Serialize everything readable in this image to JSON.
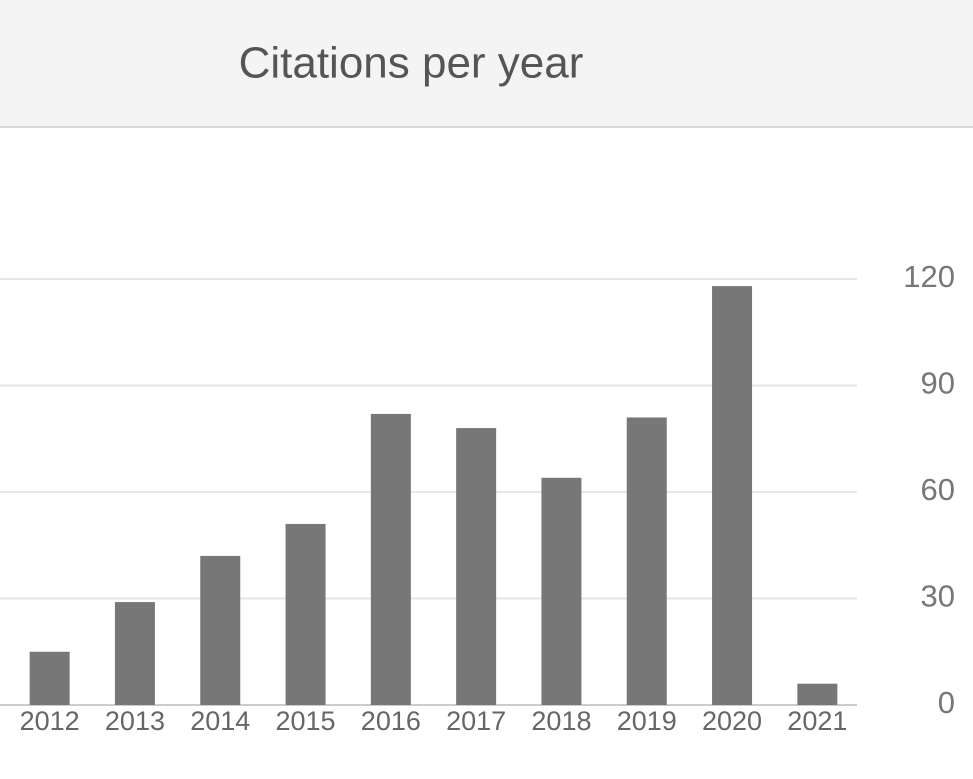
{
  "chart_data": {
    "type": "bar",
    "title": "Citations per year",
    "categories": [
      "2012",
      "2013",
      "2014",
      "2015",
      "2016",
      "2017",
      "2018",
      "2019",
      "2020",
      "2021"
    ],
    "values": [
      15,
      29,
      42,
      51,
      82,
      78,
      64,
      81,
      118,
      6
    ],
    "color": "#777777",
    "ylim": [
      0,
      120
    ],
    "yticks": [
      0,
      30,
      60,
      90,
      120
    ],
    "grid": true
  }
}
